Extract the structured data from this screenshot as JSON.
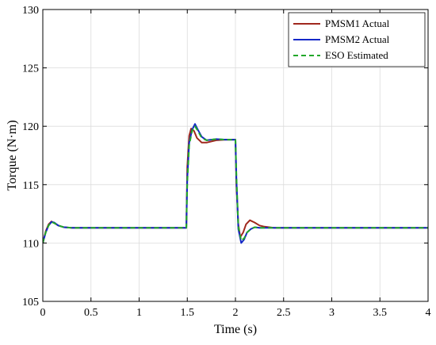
{
  "chart_data": {
    "type": "line",
    "xlabel": "Time (s)",
    "ylabel": "Torque (N·m)",
    "xlim": [
      0,
      4
    ],
    "ylim": [
      105,
      130
    ],
    "xticks": [
      0,
      0.5,
      1,
      1.5,
      2,
      2.5,
      3,
      3.5,
      4
    ],
    "yticks": [
      105,
      110,
      115,
      120,
      125,
      130
    ],
    "xtick_labels": [
      "0",
      "0.5",
      "1",
      "1.5",
      "2",
      "2.5",
      "3",
      "3.5",
      "4"
    ],
    "ytick_labels": [
      "105",
      "110",
      "115",
      "120",
      "125",
      "130"
    ],
    "grid": true,
    "legend_position": "top-right",
    "series": [
      {
        "name": "PMSM1 Actual",
        "color": "#a0281e",
        "style": "solid",
        "x": [
          0,
          0.03,
          0.06,
          0.09,
          0.12,
          0.16,
          0.22,
          0.3,
          0.5,
          1.0,
          1.49,
          1.5,
          1.52,
          1.54,
          1.57,
          1.6,
          1.65,
          1.7,
          1.8,
          1.9,
          2.0,
          2.01,
          2.03,
          2.05,
          2.08,
          2.11,
          2.15,
          2.2,
          2.25,
          2.3,
          2.4,
          2.6,
          3.0,
          3.5,
          4.0
        ],
        "y": [
          110.0,
          111.0,
          111.6,
          111.85,
          111.7,
          111.5,
          111.35,
          111.3,
          111.3,
          111.3,
          111.3,
          116.5,
          119.2,
          119.8,
          119.6,
          119.0,
          118.6,
          118.6,
          118.8,
          118.85,
          118.85,
          115.0,
          111.6,
          110.5,
          110.9,
          111.6,
          111.95,
          111.75,
          111.5,
          111.4,
          111.3,
          111.3,
          111.3,
          111.3,
          111.3
        ]
      },
      {
        "name": "PMSM2 Actual",
        "color": "#1428c8",
        "style": "solid",
        "x": [
          0,
          0.03,
          0.06,
          0.09,
          0.12,
          0.16,
          0.22,
          0.3,
          0.5,
          1.0,
          1.49,
          1.5,
          1.52,
          1.55,
          1.58,
          1.61,
          1.65,
          1.7,
          1.8,
          1.9,
          2.0,
          2.01,
          2.03,
          2.06,
          2.09,
          2.12,
          2.16,
          2.2,
          2.25,
          2.3,
          2.4,
          2.6,
          3.0,
          3.5,
          4.0
        ],
        "y": [
          110.0,
          110.9,
          111.5,
          111.8,
          111.75,
          111.5,
          111.35,
          111.3,
          111.3,
          111.3,
          111.3,
          115.5,
          118.6,
          119.7,
          120.2,
          119.7,
          119.1,
          118.8,
          118.9,
          118.85,
          118.85,
          115.5,
          111.2,
          110.0,
          110.3,
          110.9,
          111.2,
          111.35,
          111.3,
          111.3,
          111.3,
          111.3,
          111.3,
          111.3,
          111.3
        ]
      },
      {
        "name": "ESO Estimated",
        "color": "#22a82a",
        "style": "dashed",
        "x": [
          0,
          0.03,
          0.06,
          0.09,
          0.12,
          0.16,
          0.22,
          0.3,
          0.5,
          1.0,
          1.49,
          1.5,
          1.52,
          1.55,
          1.58,
          1.61,
          1.65,
          1.7,
          1.8,
          1.9,
          2.0,
          2.01,
          2.03,
          2.06,
          2.09,
          2.12,
          2.16,
          2.2,
          2.25,
          2.3,
          2.4,
          2.6,
          3.0,
          3.5,
          4.0
        ],
        "y": [
          110.0,
          110.9,
          111.5,
          111.8,
          111.7,
          111.5,
          111.35,
          111.3,
          111.3,
          111.3,
          111.3,
          115.2,
          118.4,
          119.6,
          120.0,
          119.6,
          119.0,
          118.8,
          118.9,
          118.85,
          118.85,
          115.8,
          111.4,
          110.2,
          110.4,
          110.9,
          111.2,
          111.35,
          111.3,
          111.3,
          111.3,
          111.3,
          111.3,
          111.3,
          111.3
        ]
      }
    ]
  }
}
